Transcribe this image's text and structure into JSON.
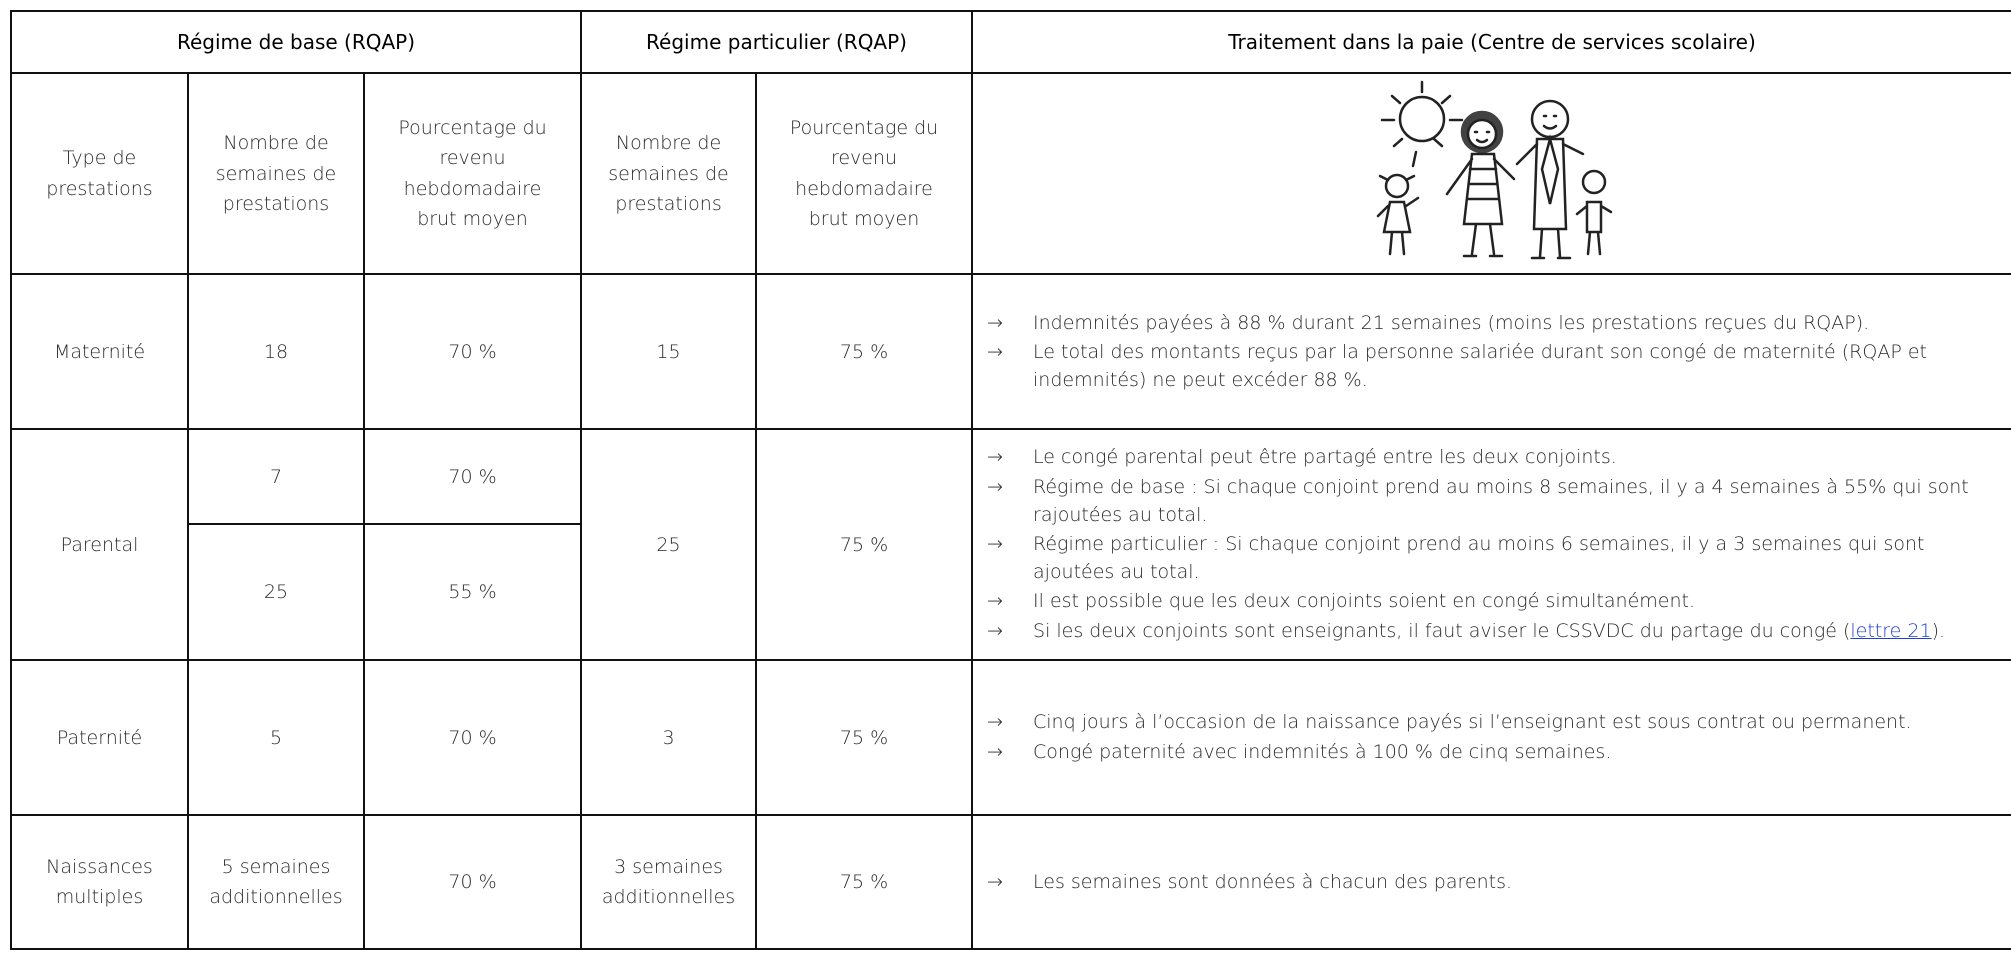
{
  "table": {
    "group_headers": [
      "Régime de base (RQAP)",
      "Régime particulier (RQAP)",
      "Traitement dans la paie (Centre de services scolaire)"
    ],
    "column_headers": [
      "Type de prestations",
      "Nombre de semaines de prestations",
      "Pourcentage du revenu hebdomadaire brut moyen",
      "Nombre de semaines de prestations",
      "Pourcentage du revenu hebdomadaire brut moyen"
    ],
    "rows": [
      {
        "type": "Maternité",
        "base": [
          {
            "weeks": "18",
            "percent": "70 %"
          }
        ],
        "particular": {
          "weeks": "15",
          "percent": "75 %"
        },
        "notes": [
          {
            "text": "Indemnités payées à 88 % durant 21 semaines (moins les prestations reçues du RQAP)."
          },
          {
            "text": "Le total des montants reçus par la personne salariée durant son congé de maternité (RQAP et indemnités) ne peut excéder 88 %."
          }
        ]
      },
      {
        "type": "Parental",
        "base": [
          {
            "weeks": "7",
            "percent": "70 %"
          },
          {
            "weeks": "25",
            "percent": "55 %"
          }
        ],
        "particular": {
          "weeks": "25",
          "percent": "75 %"
        },
        "notes": [
          {
            "text": "Le congé parental peut être partagé entre les deux conjoints."
          },
          {
            "text": "Régime de base : Si chaque conjoint prend au moins 8 semaines, il y a 4 semaines à 55% qui sont rajoutées au total."
          },
          {
            "text": "Régime particulier : Si chaque conjoint prend au moins 6 semaines, il y a 3 semaines qui sont ajoutées au total."
          },
          {
            "text": "Il est possible que les deux conjoints soient en congé simultanément."
          },
          {
            "text": "Si les deux conjoints sont enseignants, il faut aviser le CSSVDC du partage du congé (",
            "link": "lettre 21",
            "after": ")."
          }
        ]
      },
      {
        "type": "Paternité",
        "base": [
          {
            "weeks": "5",
            "percent": "70 %"
          }
        ],
        "particular": {
          "weeks": "3",
          "percent": "75 %"
        },
        "notes": [
          {
            "text": "Cinq jours à l’occasion de la naissance payés si l’enseignant est sous contrat ou permanent."
          },
          {
            "text": "Congé paternité avec indemnités à 100 % de cinq semaines."
          }
        ]
      },
      {
        "type": "Naissances multiples",
        "base": [
          {
            "weeks": "5 semaines additionnelles",
            "percent": "70 %"
          }
        ],
        "particular": {
          "weeks": "3 semaines additionnelles",
          "percent": "75 %"
        },
        "notes": [
          {
            "text": "Les semaines sont données à chacun des parents."
          }
        ]
      }
    ]
  }
}
